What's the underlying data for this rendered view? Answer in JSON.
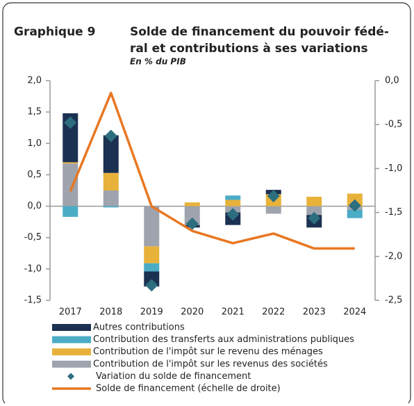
{
  "chart_data": {
    "type": "bar",
    "label": "Graphique 9",
    "title_lines": [
      "Solde de financement du pouvoir fédé-",
      "ral et contributions à ses variations"
    ],
    "subtitle": "En % du PIB",
    "categories": [
      "2017",
      "2018",
      "2019",
      "2020",
      "2021",
      "2022",
      "2023",
      "2024"
    ],
    "series": [
      {
        "name": "Autres contributions",
        "kind": "bar",
        "color": "#1b3152",
        "values": [
          0.78,
          0.6,
          -0.24,
          -0.04,
          -0.2,
          0.07,
          -0.2,
          0
        ]
      },
      {
        "name": "Contribution des transferts aux administrations publiques",
        "kind": "bar",
        "color": "#4bacc6",
        "values": [
          -0.17,
          -0.02,
          -0.13,
          0,
          0.07,
          0,
          0,
          -0.13
        ]
      },
      {
        "name": "Contribution de l'impôt sur le revenu des ménages",
        "kind": "bar",
        "color": "#e8b23a",
        "values": [
          0.02,
          0.28,
          -0.27,
          0.06,
          0.1,
          0.19,
          0.15,
          0.2
        ]
      },
      {
        "name": "Contribution de l'impôt sur les revenus des sociétés",
        "kind": "bar",
        "color": "#9ea3ad",
        "values": [
          0.68,
          0.25,
          -0.64,
          -0.3,
          -0.1,
          -0.12,
          -0.14,
          -0.06
        ]
      },
      {
        "name": "Variation du solde de financement",
        "kind": "diamond",
        "color": "#2d6e7e",
        "values": [
          1.33,
          1.12,
          -1.26,
          -0.28,
          -0.13,
          0.16,
          -0.19,
          0.01
        ]
      },
      {
        "name": "Solde de financement (échelle de droite)",
        "kind": "line",
        "axis": "y2",
        "color": "#e87722",
        "values": [
          -1.26,
          -0.14,
          -1.43,
          -1.71,
          -1.85,
          -1.74,
          -1.91,
          -1.91
        ]
      }
    ],
    "ylim": [
      -1.5,
      2.0
    ],
    "yticks": [
      {
        "value": -1.5,
        "label": "-1,5"
      },
      {
        "value": -1.0,
        "label": "-1,0"
      },
      {
        "value": -0.5,
        "label": "-0,5"
      },
      {
        "value": 0,
        "label": "0,0"
      },
      {
        "value": 0.5,
        "label": "0,5"
      },
      {
        "value": 1.0,
        "label": "1,0"
      },
      {
        "value": 1.5,
        "label": "1,5"
      },
      {
        "value": 2.0,
        "label": "2,0"
      }
    ],
    "y2lim": [
      -2.5,
      0
    ],
    "y2ticks": [
      {
        "value": -2.5,
        "label": "-2,5"
      },
      {
        "value": -2.0,
        "label": "-2,0"
      },
      {
        "value": -1.5,
        "label": "-1,5"
      },
      {
        "value": -1.0,
        "label": "-1,0"
      },
      {
        "value": -0.5,
        "label": "-0,5"
      },
      {
        "value": 0,
        "label": "0,0"
      }
    ]
  }
}
